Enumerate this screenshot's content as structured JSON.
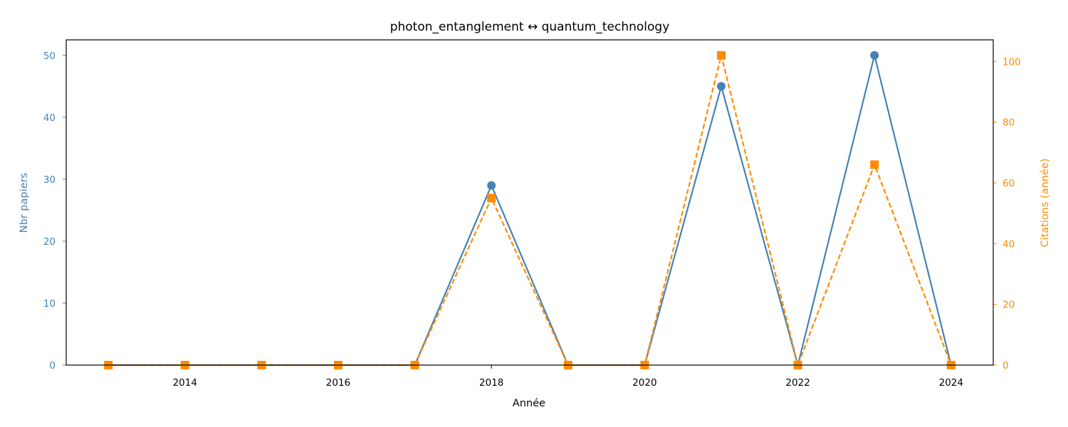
{
  "chart_data": {
    "type": "line",
    "title": "photon_entanglement  ↔  quantum_technology",
    "xlabel": "Année",
    "ylabel_left": "Nbr papiers",
    "ylabel_right": "Citations (année)",
    "x": [
      2013,
      2014,
      2015,
      2016,
      2017,
      2018,
      2019,
      2020,
      2021,
      2022,
      2023,
      2024
    ],
    "x_ticks": [
      2014,
      2016,
      2018,
      2020,
      2022,
      2024
    ],
    "xlim": [
      2012.45,
      2024.55
    ],
    "y_left_ticks": [
      0,
      10,
      20,
      30,
      40,
      50
    ],
    "y_left_lim": [
      0,
      52.5
    ],
    "y_right_ticks": [
      0,
      20,
      40,
      60,
      80,
      100
    ],
    "y_right_lim": [
      0,
      107.1
    ],
    "grid": false,
    "series": [
      {
        "axis": "left",
        "style": "solid",
        "marker": "circle",
        "color": "#4682b4",
        "values": [
          0,
          0,
          0,
          0,
          0,
          29,
          0,
          0,
          45,
          0,
          50,
          0
        ]
      },
      {
        "axis": "right",
        "style": "dashed",
        "marker": "square",
        "color": "#ff8c00",
        "values": [
          0,
          0,
          0,
          0,
          0,
          55,
          0,
          0,
          102,
          0,
          66,
          0
        ]
      }
    ]
  }
}
